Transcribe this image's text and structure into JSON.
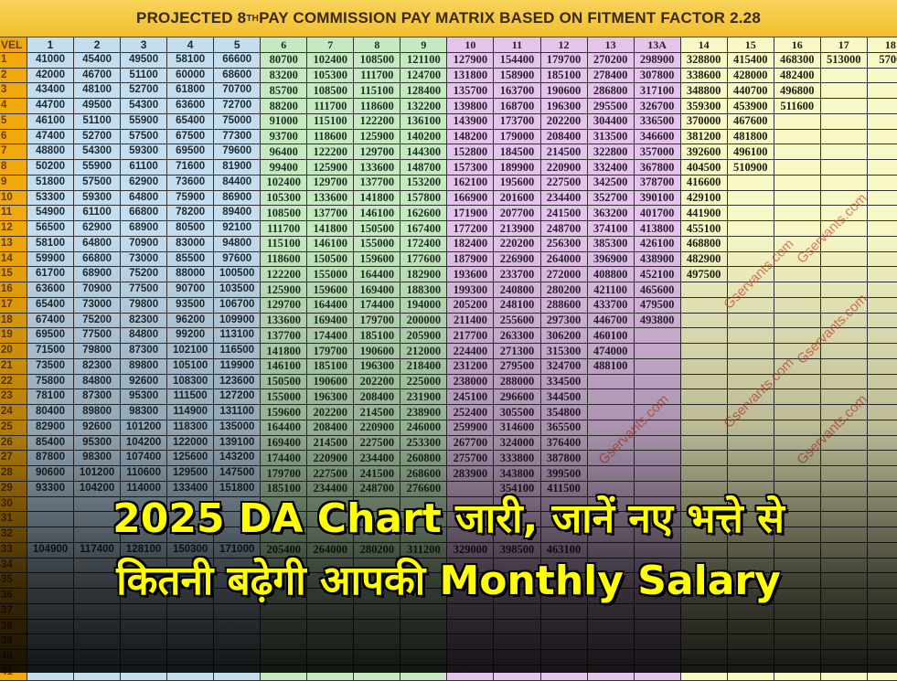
{
  "title": {
    "pre": "PROJECTED 8",
    "sup": "TH",
    "post": " PAY COMMISSION PAY MATRIX BASED ON FITMENT FACTOR 2.28"
  },
  "table": {
    "level_header": "VEL",
    "columns": [
      "1",
      "2",
      "3",
      "4",
      "5",
      "6",
      "7",
      "8",
      "9",
      "10",
      "11",
      "12",
      "13",
      "13A",
      "14",
      "15",
      "16",
      "17",
      "18"
    ],
    "column_group_colors": {
      "1-5": "#c4ddef",
      "6-9": "#c6e9c2",
      "10-13A": "#e4c4ea",
      "14-18": "#f8f7c6",
      "level": "#f0a80c"
    },
    "rows": [
      {
        "level": "1",
        "values": [
          "41000",
          "45400",
          "49500",
          "58100",
          "66600",
          "80700",
          "102400",
          "108500",
          "121100",
          "127900",
          "154400",
          "179700",
          "270200",
          "298900",
          "328800",
          "415400",
          "468300",
          "513000",
          "5700"
        ]
      },
      {
        "level": "2",
        "values": [
          "42000",
          "46700",
          "51100",
          "60000",
          "68600",
          "83200",
          "105300",
          "111700",
          "124700",
          "131800",
          "158900",
          "185100",
          "278400",
          "307800",
          "338600",
          "428000",
          "482400",
          "",
          ""
        ]
      },
      {
        "level": "3",
        "values": [
          "43400",
          "48100",
          "52700",
          "61800",
          "70700",
          "85700",
          "108500",
          "115100",
          "128400",
          "135700",
          "163700",
          "190600",
          "286800",
          "317100",
          "348800",
          "440700",
          "496800",
          "",
          ""
        ]
      },
      {
        "level": "4",
        "values": [
          "44700",
          "49500",
          "54300",
          "63600",
          "72700",
          "88200",
          "111700",
          "118600",
          "132200",
          "139800",
          "168700",
          "196300",
          "295500",
          "326700",
          "359300",
          "453900",
          "511600",
          "",
          ""
        ]
      },
      {
        "level": "5",
        "values": [
          "46100",
          "51100",
          "55900",
          "65400",
          "75000",
          "91000",
          "115100",
          "122200",
          "136100",
          "143900",
          "173700",
          "202200",
          "304400",
          "336500",
          "370000",
          "467600",
          "",
          "",
          ""
        ]
      },
      {
        "level": "6",
        "values": [
          "47400",
          "52700",
          "57500",
          "67500",
          "77300",
          "93700",
          "118600",
          "125900",
          "140200",
          "148200",
          "179000",
          "208400",
          "313500",
          "346600",
          "381200",
          "481800",
          "",
          "",
          ""
        ]
      },
      {
        "level": "7",
        "values": [
          "48800",
          "54300",
          "59300",
          "69500",
          "79600",
          "96400",
          "122200",
          "129700",
          "144300",
          "152800",
          "184500",
          "214500",
          "322800",
          "357000",
          "392600",
          "496100",
          "",
          "",
          ""
        ]
      },
      {
        "level": "8",
        "values": [
          "50200",
          "55900",
          "61100",
          "71600",
          "81900",
          "99400",
          "125900",
          "133600",
          "148700",
          "157300",
          "189900",
          "220900",
          "332400",
          "367800",
          "404500",
          "510900",
          "",
          "",
          ""
        ]
      },
      {
        "level": "9",
        "values": [
          "51800",
          "57500",
          "62900",
          "73600",
          "84400",
          "102400",
          "129700",
          "137700",
          "153200",
          "162100",
          "195600",
          "227500",
          "342500",
          "378700",
          "416600",
          "",
          "",
          "",
          ""
        ]
      },
      {
        "level": "10",
        "values": [
          "53300",
          "59300",
          "64800",
          "75900",
          "86900",
          "105300",
          "133600",
          "141800",
          "157800",
          "166900",
          "201600",
          "234400",
          "352700",
          "390100",
          "429100",
          "",
          "",
          "",
          ""
        ]
      },
      {
        "level": "11",
        "values": [
          "54900",
          "61100",
          "66800",
          "78200",
          "89400",
          "108500",
          "137700",
          "146100",
          "162600",
          "171900",
          "207700",
          "241500",
          "363200",
          "401700",
          "441900",
          "",
          "",
          "",
          ""
        ]
      },
      {
        "level": "12",
        "values": [
          "56500",
          "62900",
          "68900",
          "80500",
          "92100",
          "111700",
          "141800",
          "150500",
          "167400",
          "177200",
          "213900",
          "248700",
          "374100",
          "413800",
          "455100",
          "",
          "",
          "",
          ""
        ]
      },
      {
        "level": "13",
        "values": [
          "58100",
          "64800",
          "70900",
          "83000",
          "94800",
          "115100",
          "146100",
          "155000",
          "172400",
          "182400",
          "220200",
          "256300",
          "385300",
          "426100",
          "468800",
          "",
          "",
          "",
          ""
        ]
      },
      {
        "level": "14",
        "values": [
          "59900",
          "66800",
          "73000",
          "85500",
          "97600",
          "118600",
          "150500",
          "159600",
          "177600",
          "187900",
          "226900",
          "264000",
          "396900",
          "438900",
          "482900",
          "",
          "",
          "",
          ""
        ]
      },
      {
        "level": "15",
        "values": [
          "61700",
          "68900",
          "75200",
          "88000",
          "100500",
          "122200",
          "155000",
          "164400",
          "182900",
          "193600",
          "233700",
          "272000",
          "408800",
          "452100",
          "497500",
          "",
          "",
          "",
          ""
        ]
      },
      {
        "level": "16",
        "values": [
          "63600",
          "70900",
          "77500",
          "90700",
          "103500",
          "125900",
          "159600",
          "169400",
          "188300",
          "199300",
          "240800",
          "280200",
          "421100",
          "465600",
          "",
          "",
          "",
          "",
          ""
        ]
      },
      {
        "level": "17",
        "values": [
          "65400",
          "73000",
          "79800",
          "93500",
          "106700",
          "129700",
          "164400",
          "174400",
          "194000",
          "205200",
          "248100",
          "288600",
          "433700",
          "479500",
          "",
          "",
          "",
          "",
          ""
        ]
      },
      {
        "level": "18",
        "values": [
          "67400",
          "75200",
          "82300",
          "96200",
          "109900",
          "133600",
          "169400",
          "179700",
          "200000",
          "211400",
          "255600",
          "297300",
          "446700",
          "493800",
          "",
          "",
          "",
          "",
          ""
        ]
      },
      {
        "level": "19",
        "values": [
          "69500",
          "77500",
          "84800",
          "99200",
          "113100",
          "137700",
          "174400",
          "185100",
          "205900",
          "217700",
          "263300",
          "306200",
          "460100",
          "",
          "",
          "",
          "",
          "",
          ""
        ]
      },
      {
        "level": "20",
        "values": [
          "71500",
          "79800",
          "87300",
          "102100",
          "116500",
          "141800",
          "179700",
          "190600",
          "212000",
          "224400",
          "271300",
          "315300",
          "474000",
          "",
          "",
          "",
          "",
          "",
          ""
        ]
      },
      {
        "level": "21",
        "values": [
          "73500",
          "82300",
          "89800",
          "105100",
          "119900",
          "146100",
          "185100",
          "196300",
          "218400",
          "231200",
          "279500",
          "324700",
          "488100",
          "",
          "",
          "",
          "",
          "",
          ""
        ]
      },
      {
        "level": "22",
        "values": [
          "75800",
          "84800",
          "92600",
          "108300",
          "123600",
          "150500",
          "190600",
          "202200",
          "225000",
          "238000",
          "288000",
          "334500",
          "",
          "",
          "",
          "",
          "",
          "",
          ""
        ]
      },
      {
        "level": "23",
        "values": [
          "78100",
          "87300",
          "95300",
          "111500",
          "127200",
          "155000",
          "196300",
          "208400",
          "231900",
          "245100",
          "296600",
          "344500",
          "",
          "",
          "",
          "",
          "",
          "",
          ""
        ]
      },
      {
        "level": "24",
        "values": [
          "80400",
          "89800",
          "98300",
          "114900",
          "131100",
          "159600",
          "202200",
          "214500",
          "238900",
          "252400",
          "305500",
          "354800",
          "",
          "",
          "",
          "",
          "",
          "",
          ""
        ]
      },
      {
        "level": "25",
        "values": [
          "82900",
          "92600",
          "101200",
          "118300",
          "135000",
          "164400",
          "208400",
          "220900",
          "246000",
          "259900",
          "314600",
          "365500",
          "",
          "",
          "",
          "",
          "",
          "",
          ""
        ]
      },
      {
        "level": "26",
        "values": [
          "85400",
          "95300",
          "104200",
          "122000",
          "139100",
          "169400",
          "214500",
          "227500",
          "253300",
          "267700",
          "324000",
          "376400",
          "",
          "",
          "",
          "",
          "",
          "",
          ""
        ]
      },
      {
        "level": "27",
        "values": [
          "87800",
          "98300",
          "107400",
          "125600",
          "143200",
          "174400",
          "220900",
          "234400",
          "260800",
          "275700",
          "333800",
          "387800",
          "",
          "",
          "",
          "",
          "",
          "",
          ""
        ]
      },
      {
        "level": "28",
        "values": [
          "90600",
          "101200",
          "110600",
          "129500",
          "147500",
          "179700",
          "227500",
          "241500",
          "268600",
          "283900",
          "343800",
          "399500",
          "",
          "",
          "",
          "",
          "",
          "",
          ""
        ]
      },
      {
        "level": "29",
        "values": [
          "93300",
          "104200",
          "114000",
          "133400",
          "151800",
          "185100",
          "234400",
          "248700",
          "276600",
          "",
          "354100",
          "411500",
          "",
          "",
          "",
          "",
          "",
          "",
          ""
        ]
      },
      {
        "level": "30",
        "values": [
          "",
          "",
          "",
          "",
          "",
          "",
          "",
          "",
          "",
          "",
          "",
          "",
          "",
          "",
          "",
          "",
          "",
          "",
          ""
        ]
      },
      {
        "level": "31",
        "values": [
          "",
          "",
          "",
          "",
          "",
          "",
          "",
          "",
          "",
          "",
          "",
          "",
          "",
          "",
          "",
          "",
          "",
          "",
          ""
        ]
      },
      {
        "level": "32",
        "values": [
          "",
          "",
          "",
          "",
          "",
          "",
          "",
          "",
          "",
          "",
          "",
          "",
          "",
          "",
          "",
          "",
          "",
          "",
          ""
        ]
      },
      {
        "level": "33",
        "values": [
          "104900",
          "117400",
          "128100",
          "150300",
          "171000",
          "205400",
          "264000",
          "280200",
          "311200",
          "329000",
          "398500",
          "463100",
          "",
          "",
          "",
          "",
          "",
          "",
          ""
        ]
      },
      {
        "level": "34",
        "values": [
          "",
          "",
          "",
          "",
          "",
          "",
          "",
          "",
          "",
          "",
          "",
          "",
          "",
          "",
          "",
          "",
          "",
          "",
          ""
        ]
      },
      {
        "level": "35",
        "values": [
          "",
          "",
          "",
          "",
          "",
          "",
          "",
          "",
          "",
          "",
          "",
          "",
          "",
          "",
          "",
          "",
          "",
          "",
          ""
        ]
      },
      {
        "level": "36",
        "values": [
          "",
          "",
          "",
          "",
          "",
          "",
          "",
          "",
          "",
          "",
          "",
          "",
          "",
          "",
          "",
          "",
          "",
          "",
          ""
        ]
      },
      {
        "level": "37",
        "values": [
          "",
          "",
          "",
          "",
          "",
          "",
          "",
          "",
          "",
          "",
          "",
          "",
          "",
          "",
          "",
          "",
          "",
          "",
          ""
        ]
      },
      {
        "level": "38",
        "values": [
          "",
          "",
          "",
          "",
          "",
          "",
          "",
          "",
          "",
          "",
          "",
          "",
          "",
          "",
          "",
          "",
          "",
          "",
          ""
        ]
      },
      {
        "level": "39",
        "values": [
          "",
          "",
          "",
          "",
          "",
          "",
          "",
          "",
          "",
          "",
          "",
          "",
          "",
          "",
          "",
          "",
          "",
          "",
          ""
        ]
      },
      {
        "level": "40",
        "values": [
          "",
          "",
          "",
          "",
          "",
          "",
          "",
          "",
          "",
          "",
          "",
          "",
          "",
          "",
          "",
          "",
          "",
          "",
          ""
        ]
      },
      {
        "level": "41",
        "values": [
          "",
          "",
          "",
          "",
          "",
          "",
          "",
          "",
          "",
          "",
          "",
          "",
          "",
          "",
          "",
          "",
          "",
          "",
          ""
        ]
      }
    ]
  },
  "watermark": "Gservants.com",
  "headline": {
    "line1": "2025 DA Chart जारी, जानें नए भत्ते से",
    "line2": "कितनी बढ़ेगी आपकी Monthly Salary",
    "color": "#ffff00"
  }
}
